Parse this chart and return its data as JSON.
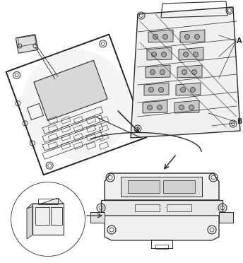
{
  "background_color": "#ffffff",
  "line_color": "#2a2a2a",
  "label_A": "A",
  "label_B": "B",
  "figsize": [
    3.44,
    3.72
  ],
  "dpi": 100,
  "image_data": ""
}
